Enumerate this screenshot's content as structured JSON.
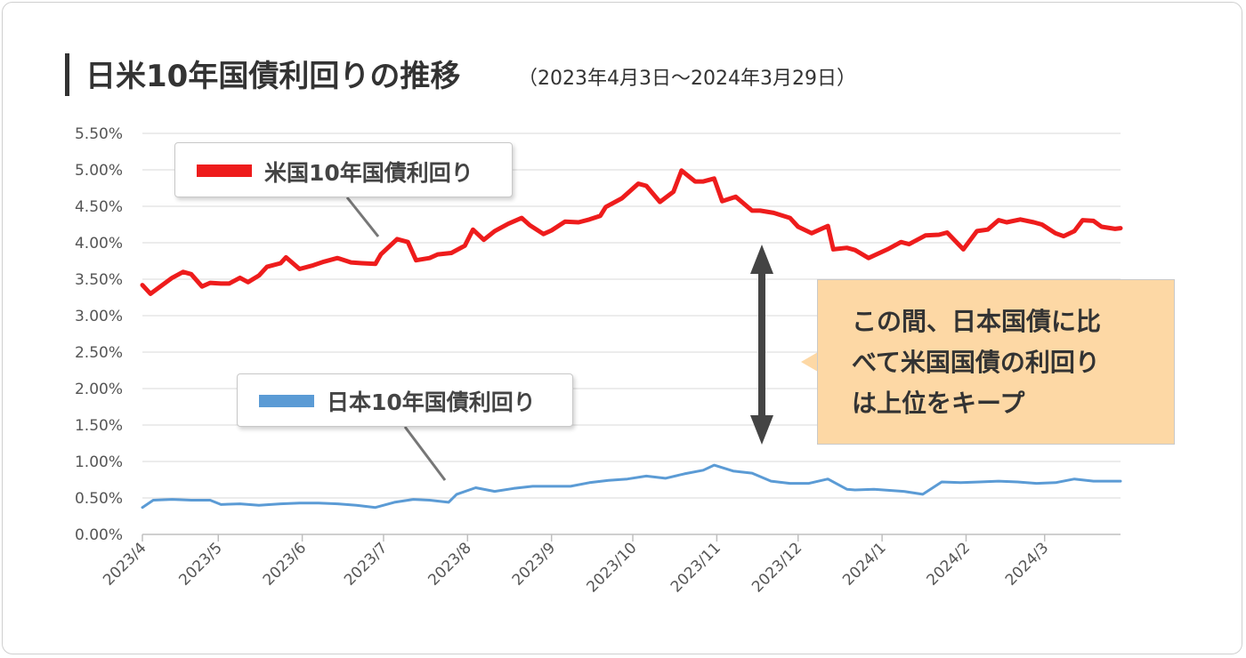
{
  "title": "日米10年国債利回りの推移",
  "subtitle": "（2023年4月3日～2024年3月29日）",
  "legend": {
    "us_label": "米国10年国債利回り",
    "jp_label": "日本10年国債利回り"
  },
  "callout": {
    "lines": [
      "この間、日本国債に比",
      "べて米国国債の利回り",
      "は上位をキープ"
    ]
  },
  "colors": {
    "us": "#ee1c1c",
    "jp": "#5b9bd5",
    "grid": "#d9d9d9",
    "axis": "#bfbfbf",
    "arrow": "#444444",
    "callout_bg": "#fdd8a5"
  },
  "chart_data": {
    "type": "line",
    "x_unit": "date",
    "x_range": [
      "2023-04-03",
      "2024-03-29"
    ],
    "ylim": [
      0,
      5.5
    ],
    "y_ticks": [
      "0.00%",
      "0.50%",
      "1.00%",
      "1.50%",
      "2.00%",
      "2.50%",
      "3.00%",
      "3.50%",
      "4.00%",
      "4.50%",
      "5.00%",
      "5.50%"
    ],
    "x_ticks": [
      "2023/4",
      "2023/5",
      "2023/6",
      "2023/7",
      "2023/8",
      "2023/9",
      "2023/10",
      "2023/11",
      "2023/12",
      "2024/1",
      "2024/2",
      "2024/3"
    ],
    "grid": "horizontal",
    "series": [
      {
        "name": "米国10年国債利回り",
        "color": "#ee1c1c",
        "points": [
          [
            "2023-04-03",
            3.42
          ],
          [
            "2023-04-06",
            3.3
          ],
          [
            "2023-04-10",
            3.41
          ],
          [
            "2023-04-14",
            3.52
          ],
          [
            "2023-04-18",
            3.6
          ],
          [
            "2023-04-21",
            3.57
          ],
          [
            "2023-04-25",
            3.4
          ],
          [
            "2023-04-28",
            3.45
          ],
          [
            "2023-05-02",
            3.44
          ],
          [
            "2023-05-05",
            3.44
          ],
          [
            "2023-05-09",
            3.52
          ],
          [
            "2023-05-12",
            3.46
          ],
          [
            "2023-05-16",
            3.55
          ],
          [
            "2023-05-19",
            3.67
          ],
          [
            "2023-05-24",
            3.72
          ],
          [
            "2023-05-26",
            3.8
          ],
          [
            "2023-05-31",
            3.64
          ],
          [
            "2023-06-05",
            3.69
          ],
          [
            "2023-06-09",
            3.74
          ],
          [
            "2023-06-14",
            3.79
          ],
          [
            "2023-06-19",
            3.73
          ],
          [
            "2023-06-23",
            3.72
          ],
          [
            "2023-06-28",
            3.71
          ],
          [
            "2023-06-30",
            3.84
          ],
          [
            "2023-07-06",
            4.05
          ],
          [
            "2023-07-10",
            4.01
          ],
          [
            "2023-07-13",
            3.76
          ],
          [
            "2023-07-18",
            3.79
          ],
          [
            "2023-07-21",
            3.84
          ],
          [
            "2023-07-26",
            3.86
          ],
          [
            "2023-07-31",
            3.96
          ],
          [
            "2023-08-03",
            4.18
          ],
          [
            "2023-08-07",
            4.04
          ],
          [
            "2023-08-11",
            4.16
          ],
          [
            "2023-08-16",
            4.26
          ],
          [
            "2023-08-21",
            4.34
          ],
          [
            "2023-08-24",
            4.24
          ],
          [
            "2023-08-29",
            4.12
          ],
          [
            "2023-09-01",
            4.17
          ],
          [
            "2023-09-06",
            4.29
          ],
          [
            "2023-09-11",
            4.28
          ],
          [
            "2023-09-15",
            4.32
          ],
          [
            "2023-09-19",
            4.37
          ],
          [
            "2023-09-21",
            4.49
          ],
          [
            "2023-09-27",
            4.61
          ],
          [
            "2023-10-03",
            4.81
          ],
          [
            "2023-10-06",
            4.78
          ],
          [
            "2023-10-11",
            4.56
          ],
          [
            "2023-10-16",
            4.7
          ],
          [
            "2023-10-19",
            4.99
          ],
          [
            "2023-10-24",
            4.84
          ],
          [
            "2023-10-27",
            4.84
          ],
          [
            "2023-10-31",
            4.88
          ],
          [
            "2023-11-03",
            4.57
          ],
          [
            "2023-11-08",
            4.63
          ],
          [
            "2023-11-14",
            4.44
          ],
          [
            "2023-11-17",
            4.44
          ],
          [
            "2023-11-22",
            4.41
          ],
          [
            "2023-11-28",
            4.34
          ],
          [
            "2023-12-01",
            4.22
          ],
          [
            "2023-12-06",
            4.13
          ],
          [
            "2023-12-12",
            4.23
          ],
          [
            "2023-12-14",
            3.91
          ],
          [
            "2023-12-19",
            3.93
          ],
          [
            "2023-12-22",
            3.9
          ],
          [
            "2023-12-27",
            3.79
          ],
          [
            "2024-01-03",
            3.91
          ],
          [
            "2024-01-08",
            4.01
          ],
          [
            "2024-01-11",
            3.98
          ],
          [
            "2024-01-17",
            4.1
          ],
          [
            "2024-01-22",
            4.11
          ],
          [
            "2024-01-25",
            4.14
          ],
          [
            "2024-01-31",
            3.91
          ],
          [
            "2024-02-05",
            4.16
          ],
          [
            "2024-02-09",
            4.18
          ],
          [
            "2024-02-13",
            4.31
          ],
          [
            "2024-02-16",
            4.28
          ],
          [
            "2024-02-21",
            4.32
          ],
          [
            "2024-02-26",
            4.28
          ],
          [
            "2024-02-29",
            4.25
          ],
          [
            "2024-03-05",
            4.13
          ],
          [
            "2024-03-08",
            4.09
          ],
          [
            "2024-03-12",
            4.16
          ],
          [
            "2024-03-15",
            4.31
          ],
          [
            "2024-03-19",
            4.3
          ],
          [
            "2024-03-22",
            4.22
          ],
          [
            "2024-03-27",
            4.19
          ],
          [
            "2024-03-29",
            4.2
          ]
        ]
      },
      {
        "name": "日本10年国債利回り",
        "color": "#5b9bd5",
        "points": [
          [
            "2023-04-03",
            0.37
          ],
          [
            "2023-04-07",
            0.47
          ],
          [
            "2023-04-14",
            0.48
          ],
          [
            "2023-04-21",
            0.47
          ],
          [
            "2023-04-28",
            0.47
          ],
          [
            "2023-05-02",
            0.41
          ],
          [
            "2023-05-09",
            0.42
          ],
          [
            "2023-05-16",
            0.4
          ],
          [
            "2023-05-24",
            0.42
          ],
          [
            "2023-05-31",
            0.43
          ],
          [
            "2023-06-07",
            0.43
          ],
          [
            "2023-06-14",
            0.42
          ],
          [
            "2023-06-21",
            0.4
          ],
          [
            "2023-06-28",
            0.37
          ],
          [
            "2023-07-05",
            0.44
          ],
          [
            "2023-07-12",
            0.48
          ],
          [
            "2023-07-18",
            0.47
          ],
          [
            "2023-07-25",
            0.44
          ],
          [
            "2023-07-28",
            0.55
          ],
          [
            "2023-08-04",
            0.64
          ],
          [
            "2023-08-11",
            0.59
          ],
          [
            "2023-08-18",
            0.63
          ],
          [
            "2023-08-25",
            0.66
          ],
          [
            "2023-09-01",
            0.66
          ],
          [
            "2023-09-08",
            0.66
          ],
          [
            "2023-09-15",
            0.71
          ],
          [
            "2023-09-22",
            0.74
          ],
          [
            "2023-09-29",
            0.76
          ],
          [
            "2023-10-06",
            0.8
          ],
          [
            "2023-10-13",
            0.77
          ],
          [
            "2023-10-20",
            0.83
          ],
          [
            "2023-10-27",
            0.88
          ],
          [
            "2023-10-31",
            0.95
          ],
          [
            "2023-11-07",
            0.87
          ],
          [
            "2023-11-14",
            0.84
          ],
          [
            "2023-11-21",
            0.73
          ],
          [
            "2023-11-28",
            0.7
          ],
          [
            "2023-12-05",
            0.7
          ],
          [
            "2023-12-12",
            0.76
          ],
          [
            "2023-12-19",
            0.62
          ],
          [
            "2023-12-22",
            0.61
          ],
          [
            "2023-12-29",
            0.62
          ],
          [
            "2024-01-09",
            0.59
          ],
          [
            "2024-01-16",
            0.55
          ],
          [
            "2024-01-23",
            0.72
          ],
          [
            "2024-01-30",
            0.71
          ],
          [
            "2024-02-06",
            0.72
          ],
          [
            "2024-02-13",
            0.73
          ],
          [
            "2024-02-20",
            0.72
          ],
          [
            "2024-02-27",
            0.7
          ],
          [
            "2024-03-05",
            0.71
          ],
          [
            "2024-03-12",
            0.76
          ],
          [
            "2024-03-19",
            0.73
          ],
          [
            "2024-03-26",
            0.73
          ],
          [
            "2024-03-29",
            0.73
          ]
        ]
      }
    ]
  }
}
